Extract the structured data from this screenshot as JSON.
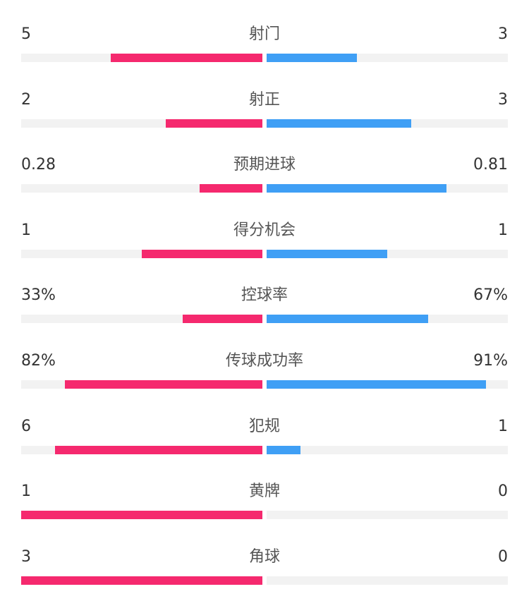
{
  "colors": {
    "home": "#f5296e",
    "away": "#3f9ff5",
    "track": "#f2f2f2"
  },
  "chart_data": {
    "type": "bar",
    "orientation": "diverging-horizontal",
    "stats": [
      {
        "label": "射门",
        "left": "5",
        "right": "3",
        "left_fill": 0.63,
        "right_fill": 0.375
      },
      {
        "label": "射正",
        "left": "2",
        "right": "3",
        "left_fill": 0.4,
        "right_fill": 0.6
      },
      {
        "label": "预期进球",
        "left": "0.28",
        "right": "0.81",
        "left_fill": 0.26,
        "right_fill": 0.745
      },
      {
        "label": "得分机会",
        "left": "1",
        "right": "1",
        "left_fill": 0.5,
        "right_fill": 0.5
      },
      {
        "label": "控球率",
        "left": "33%",
        "right": "67%",
        "left_fill": 0.33,
        "right_fill": 0.67
      },
      {
        "label": "传球成功率",
        "left": "82%",
        "right": "91%",
        "left_fill": 0.82,
        "right_fill": 0.91
      },
      {
        "label": "犯规",
        "left": "6",
        "right": "1",
        "left_fill": 0.86,
        "right_fill": 0.14
      },
      {
        "label": "黄牌",
        "left": "1",
        "right": "0",
        "left_fill": 1.0,
        "right_fill": 0.0
      },
      {
        "label": "角球",
        "left": "3",
        "right": "0",
        "left_fill": 1.0,
        "right_fill": 0.0
      }
    ]
  }
}
